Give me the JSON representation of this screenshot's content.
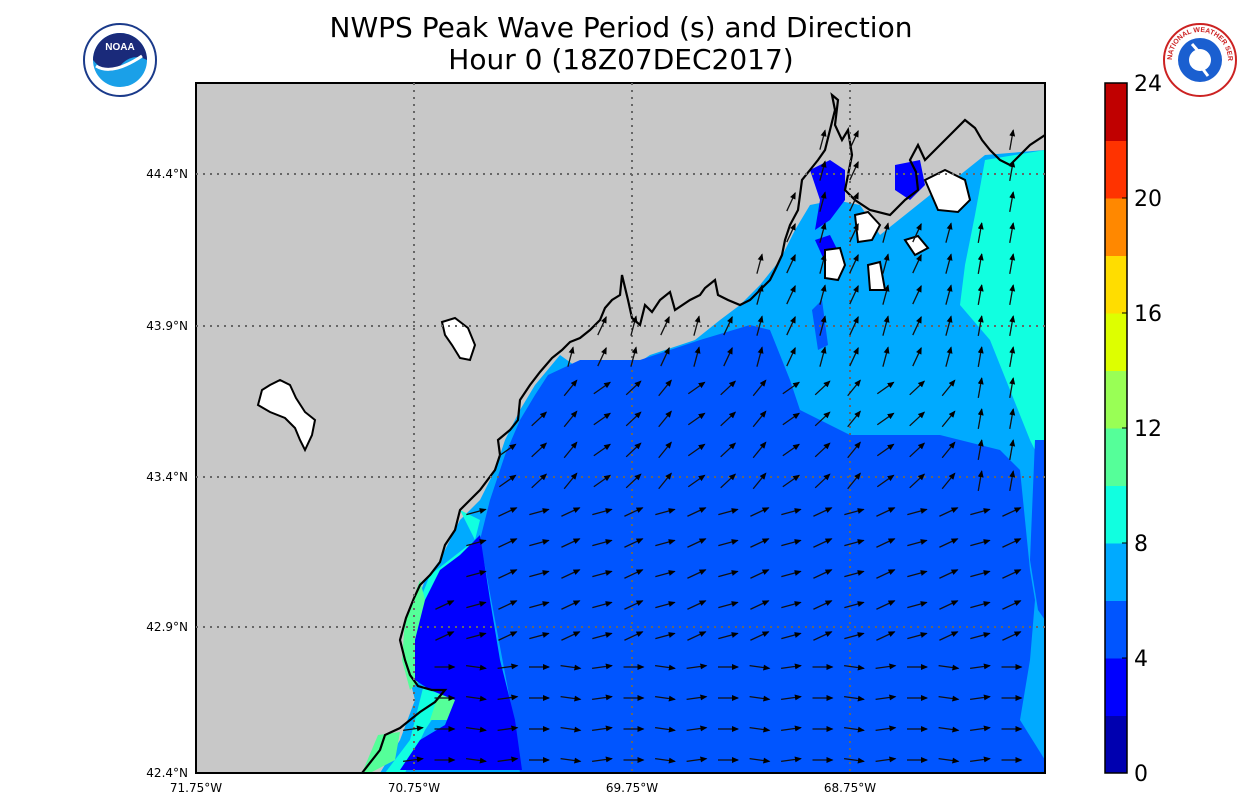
{
  "title": "NWPS Peak Wave Period (s) and Direction",
  "subtitle": "Hour 0 (18Z07DEC2017)",
  "logos": [
    {
      "name": "noaa-logo",
      "text": "NOAA"
    },
    {
      "name": "nws-logo",
      "text": "NATIONAL WEATHER SERVICE"
    }
  ],
  "axes": {
    "lon_ticks": [
      "71.75°W",
      "70.75°W",
      "69.75°W",
      "68.75°W"
    ],
    "lat_ticks": [
      "44.4°N",
      "43.9°N",
      "43.4°N",
      "42.9°N",
      "42.4°N"
    ],
    "lon_range": [
      -71.75,
      -67.85
    ],
    "lat_range": [
      42.4,
      44.7
    ],
    "grid": "dotted"
  },
  "colorbar": {
    "ticks": [
      "0",
      "4",
      "8",
      "12",
      "16",
      "20",
      "24"
    ],
    "range": [
      0,
      24
    ],
    "step": 2,
    "colors": [
      "#0000b0",
      "#0000ff",
      "#0055ff",
      "#00aaff",
      "#11ffe0",
      "#55ff99",
      "#99ff55",
      "#ddff00",
      "#ffdd00",
      "#ff8800",
      "#ff3300",
      "#c00000"
    ]
  },
  "colors": {
    "land": "#c8c8c8",
    "period_2_4": "#0000ff",
    "period_4_6": "#0055ff",
    "period_6_8": "#00aaff",
    "period_8_10": "#11ffe0",
    "period_10_12": "#55ff99",
    "coastline": "#000000",
    "arrow": "#000000"
  }
}
